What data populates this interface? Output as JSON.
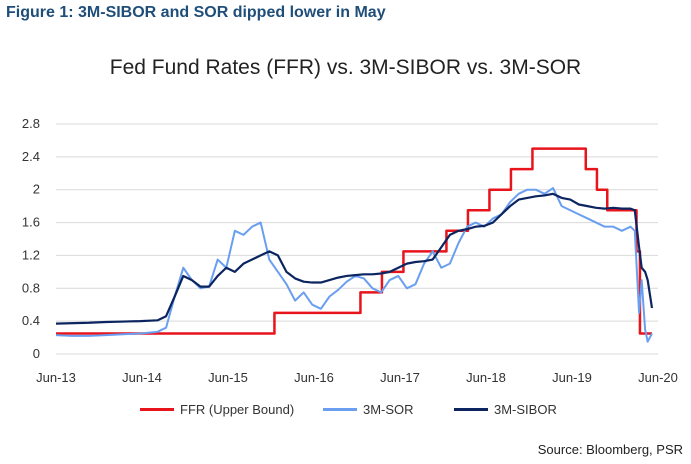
{
  "figure_title": "Figure 1: 3M-SIBOR and SOR dipped lower in May",
  "source": "Source: Bloomberg, PSR",
  "colors": {
    "ffr": "#e8141b",
    "sor": "#6a9ef0",
    "sibor": "#0c2560",
    "grid": "#d9d9d9"
  },
  "chart_data": {
    "type": "line",
    "title": "Fed Fund Rates (FFR) vs. 3M-SIBOR vs. 3M-SOR",
    "xlabel": "",
    "ylabel": "",
    "xlim": [
      2013.42,
      2020.42
    ],
    "ylim": [
      0,
      2.8
    ],
    "yticks": [
      "0",
      "0.4",
      "0.8",
      "1.2",
      "1.6",
      "2",
      "2.4",
      "2.8"
    ],
    "xticks": [
      {
        "label": "Jun-13",
        "x": 2013.42
      },
      {
        "label": "Jun-14",
        "x": 2014.42
      },
      {
        "label": "Jun-15",
        "x": 2015.42
      },
      {
        "label": "Jun-16",
        "x": 2016.42
      },
      {
        "label": "Jun-17",
        "x": 2017.42
      },
      {
        "label": "Jun-18",
        "x": 2018.42
      },
      {
        "label": "Jun-19",
        "x": 2019.42
      },
      {
        "label": "Jun-20",
        "x": 2020.42
      }
    ],
    "grid": true,
    "legend_position": "bottom",
    "series": [
      {
        "name": "FFR (Upper Bound)",
        "step": true,
        "x": [
          2013.42,
          2015.96,
          2016.96,
          2017.21,
          2017.46,
          2017.96,
          2018.21,
          2018.46,
          2018.71,
          2018.96,
          2019.58,
          2019.71,
          2019.83,
          2020.17,
          2020.21,
          2020.35
        ],
        "y": [
          0.25,
          0.5,
          0.75,
          1.0,
          1.25,
          1.5,
          1.75,
          2.0,
          2.25,
          2.5,
          2.25,
          2.0,
          1.75,
          1.25,
          0.25,
          0.25
        ]
      },
      {
        "name": "3M-SOR",
        "x": [
          2013.42,
          2013.6,
          2013.8,
          2014.0,
          2014.2,
          2014.4,
          2014.6,
          2014.7,
          2014.8,
          2014.9,
          2015.0,
          2015.1,
          2015.2,
          2015.3,
          2015.4,
          2015.5,
          2015.6,
          2015.7,
          2015.8,
          2015.9,
          2016.0,
          2016.1,
          2016.2,
          2016.3,
          2016.4,
          2016.5,
          2016.6,
          2016.7,
          2016.8,
          2016.9,
          2017.0,
          2017.1,
          2017.2,
          2017.3,
          2017.4,
          2017.5,
          2017.6,
          2017.7,
          2017.8,
          2017.9,
          2018.0,
          2018.1,
          2018.2,
          2018.3,
          2018.4,
          2018.5,
          2018.6,
          2018.7,
          2018.8,
          2018.9,
          2019.0,
          2019.1,
          2019.2,
          2019.3,
          2019.4,
          2019.5,
          2019.6,
          2019.7,
          2019.8,
          2019.9,
          2020.0,
          2020.1,
          2020.15,
          2020.2,
          2020.23,
          2020.27,
          2020.3,
          2020.35
        ],
        "y": [
          0.23,
          0.22,
          0.22,
          0.23,
          0.24,
          0.25,
          0.27,
          0.32,
          0.7,
          1.05,
          0.9,
          0.8,
          0.82,
          1.15,
          1.05,
          1.5,
          1.45,
          1.55,
          1.6,
          1.15,
          1.0,
          0.85,
          0.65,
          0.75,
          0.6,
          0.55,
          0.7,
          0.78,
          0.88,
          0.95,
          0.92,
          0.8,
          0.75,
          0.9,
          0.95,
          0.8,
          0.85,
          1.1,
          1.25,
          1.05,
          1.1,
          1.35,
          1.55,
          1.6,
          1.55,
          1.65,
          1.7,
          1.85,
          1.95,
          2.0,
          2.0,
          1.95,
          2.02,
          1.8,
          1.75,
          1.7,
          1.65,
          1.6,
          1.55,
          1.55,
          1.5,
          1.55,
          1.5,
          0.5,
          0.9,
          0.3,
          0.15,
          0.25
        ]
      },
      {
        "name": "3M-SIBOR",
        "x": [
          2013.42,
          2013.8,
          2014.0,
          2014.4,
          2014.6,
          2014.7,
          2014.8,
          2014.9,
          2015.0,
          2015.1,
          2015.2,
          2015.3,
          2015.4,
          2015.5,
          2015.6,
          2015.7,
          2015.8,
          2015.9,
          2016.0,
          2016.1,
          2016.2,
          2016.3,
          2016.4,
          2016.5,
          2016.6,
          2016.7,
          2016.8,
          2016.9,
          2017.0,
          2017.1,
          2017.2,
          2017.3,
          2017.4,
          2017.5,
          2017.6,
          2017.7,
          2017.8,
          2017.9,
          2018.0,
          2018.1,
          2018.2,
          2018.3,
          2018.4,
          2018.5,
          2018.6,
          2018.7,
          2018.8,
          2018.9,
          2019.0,
          2019.1,
          2019.2,
          2019.3,
          2019.4,
          2019.5,
          2019.6,
          2019.7,
          2019.8,
          2019.9,
          2020.0,
          2020.1,
          2020.15,
          2020.2,
          2020.23,
          2020.27,
          2020.3,
          2020.35
        ],
        "y": [
          0.37,
          0.38,
          0.39,
          0.4,
          0.41,
          0.46,
          0.7,
          0.95,
          0.9,
          0.82,
          0.82,
          0.95,
          1.05,
          1.0,
          1.1,
          1.15,
          1.2,
          1.25,
          1.2,
          1.0,
          0.92,
          0.88,
          0.87,
          0.87,
          0.9,
          0.93,
          0.95,
          0.96,
          0.97,
          0.97,
          0.98,
          1.0,
          1.05,
          1.1,
          1.12,
          1.13,
          1.15,
          1.3,
          1.45,
          1.5,
          1.52,
          1.55,
          1.56,
          1.6,
          1.7,
          1.8,
          1.88,
          1.9,
          1.92,
          1.93,
          1.95,
          1.9,
          1.88,
          1.82,
          1.8,
          1.78,
          1.77,
          1.78,
          1.77,
          1.77,
          1.75,
          1.3,
          1.05,
          1.0,
          0.9,
          0.56
        ]
      }
    ]
  }
}
